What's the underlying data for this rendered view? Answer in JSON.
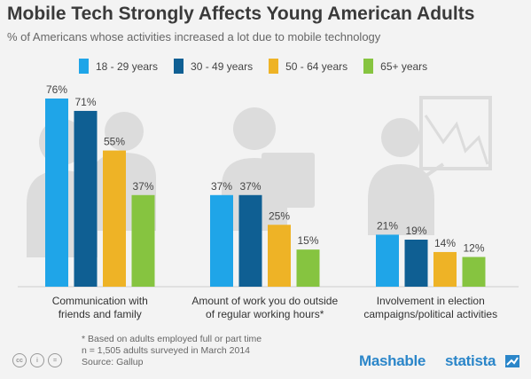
{
  "header": {
    "title": "Mobile Tech Strongly Affects Young American Adults",
    "subtitle": "% of Americans whose activities increased a lot due to mobile technology"
  },
  "colors": {
    "series": [
      "#1fa5e8",
      "#0f5f93",
      "#eeb326",
      "#86c440"
    ],
    "illustration": "#dcdcdc",
    "label": "#444444",
    "axis": "#cccccc"
  },
  "chart_data": {
    "type": "bar",
    "title": "Mobile Tech Strongly Affects Young American Adults",
    "subtitle": "% of Americans whose activities increased a lot due to mobile technology",
    "categories": [
      [
        "Communication with",
        "friends and family"
      ],
      [
        "Amount of work you do outside",
        "of regular working hours*"
      ],
      [
        "Involvement in election",
        "campaigns/political activities"
      ]
    ],
    "series": [
      {
        "name": "18 - 29 years",
        "values": [
          76,
          37,
          21
        ],
        "labels": [
          "76%",
          "37%",
          "21%"
        ]
      },
      {
        "name": "30 - 49 years",
        "values": [
          71,
          37,
          19
        ],
        "labels": [
          "71%",
          "37%",
          "19%"
        ]
      },
      {
        "name": "50 - 64 years",
        "values": [
          55,
          25,
          14
        ],
        "labels": [
          "55%",
          "25%",
          "14%"
        ]
      },
      {
        "name": "65+ years",
        "values": [
          37,
          15,
          12
        ],
        "labels": [
          "37%",
          "15%",
          "12%"
        ]
      }
    ],
    "ylim": [
      0,
      80
    ],
    "legend_position": "top",
    "grid": false
  },
  "footer": {
    "notes": [
      "* Based on adults employed full or part time",
      "n = 1,505 adults surveyed in March 2014",
      "Source: Gallup"
    ],
    "brand_mashable": "Mashable",
    "brand_statista": "statista"
  }
}
